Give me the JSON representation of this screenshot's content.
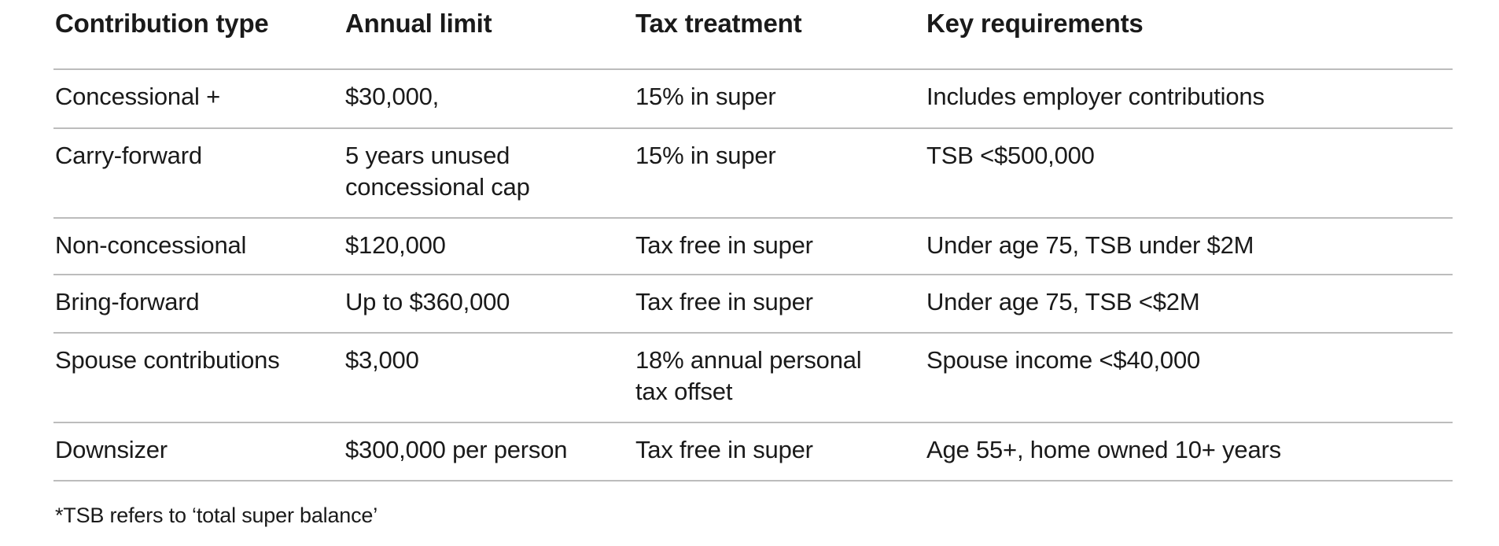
{
  "table": {
    "columns": [
      {
        "key": "type",
        "label": "Contribution type"
      },
      {
        "key": "limit",
        "label": "Annual limit"
      },
      {
        "key": "tax",
        "label": "Tax treatment"
      },
      {
        "key": "req",
        "label": "Key requirements"
      }
    ],
    "rows": [
      {
        "type": "Concessional +",
        "limit": "$30,000,",
        "tax": "15% in super",
        "req": "Includes employer contributions"
      },
      {
        "type": "Carry-forward",
        "limit": "5 years unused\nconcessional cap",
        "tax": "15% in super",
        "req": "TSB <$500,000"
      },
      {
        "type": "Non-concessional",
        "limit": "$120,000",
        "tax": "Tax free in super",
        "req": "Under age 75, TSB under $2M"
      },
      {
        "type": "Bring-forward",
        "limit": "Up to $360,000",
        "tax": "Tax free in super",
        "req": "Under age 75, TSB <$2M"
      },
      {
        "type": "Spouse contributions",
        "limit": "$3,000",
        "tax": "18% annual personal\ntax offset",
        "req": "Spouse income <$40,000"
      },
      {
        "type": "Downsizer",
        "limit": "$300,000 per person",
        "tax": "Tax free in super",
        "req": "Age 55+, home owned 10+ years"
      }
    ]
  },
  "footnote": "*TSB refers to ‘total super balance’",
  "colors": {
    "text": "#1a1a1a",
    "line": "#bcbcbc",
    "background": "#ffffff"
  }
}
